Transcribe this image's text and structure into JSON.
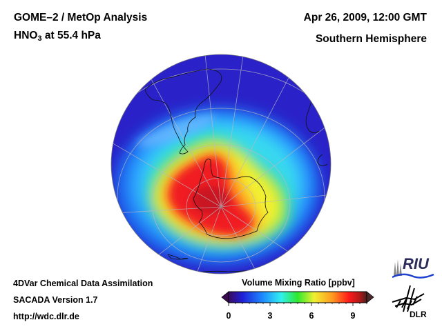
{
  "header": {
    "title_line1": "GOME–2 / MetOp Analysis",
    "species": "HNO",
    "species_subscript": "3",
    "level": "at 55.4 hPa",
    "datetime": "Apr 26, 2009, 12:00 GMT",
    "region": "Southern Hemisphere"
  },
  "footer": {
    "line1": "4DVar Chemical Data Assimilation",
    "line2": "SACADA Version 1.7",
    "line3": "http://wdc.dlr.de"
  },
  "colorbar": {
    "title": "Volume Mixing Ratio [ppbv]",
    "min": 0,
    "max": 10,
    "ticks": [
      "0",
      "3",
      "6",
      "9"
    ],
    "tick_values": [
      0,
      3,
      6,
      9
    ],
    "colors": [
      "#3a0a5e",
      "#1f1fd8",
      "#1e8cff",
      "#30f0f0",
      "#2ee82e",
      "#f0f030",
      "#ff9a20",
      "#ff1a1a",
      "#c01818",
      "#4a2020"
    ]
  },
  "logos": {
    "riu": "RIU",
    "dlr": "DLR"
  },
  "chart_data": {
    "type": "heatmap",
    "title": "HNO3 at 55.4 hPa",
    "projection": "orthographic, Southern Hemisphere, centered on South Pole",
    "units": "ppbv",
    "range": [
      0,
      10
    ],
    "features": [
      {
        "region": "South Pole / Antarctic Peninsula",
        "value_approx": 10
      },
      {
        "region": "East Antarctica interior",
        "value_approx": 7.5
      },
      {
        "region": "Polar vortex edge",
        "value_approx": 5
      },
      {
        "region": "Mid-latitudes",
        "value_approx": 3
      },
      {
        "region": "Low latitudes",
        "value_approx": 1
      }
    ]
  }
}
